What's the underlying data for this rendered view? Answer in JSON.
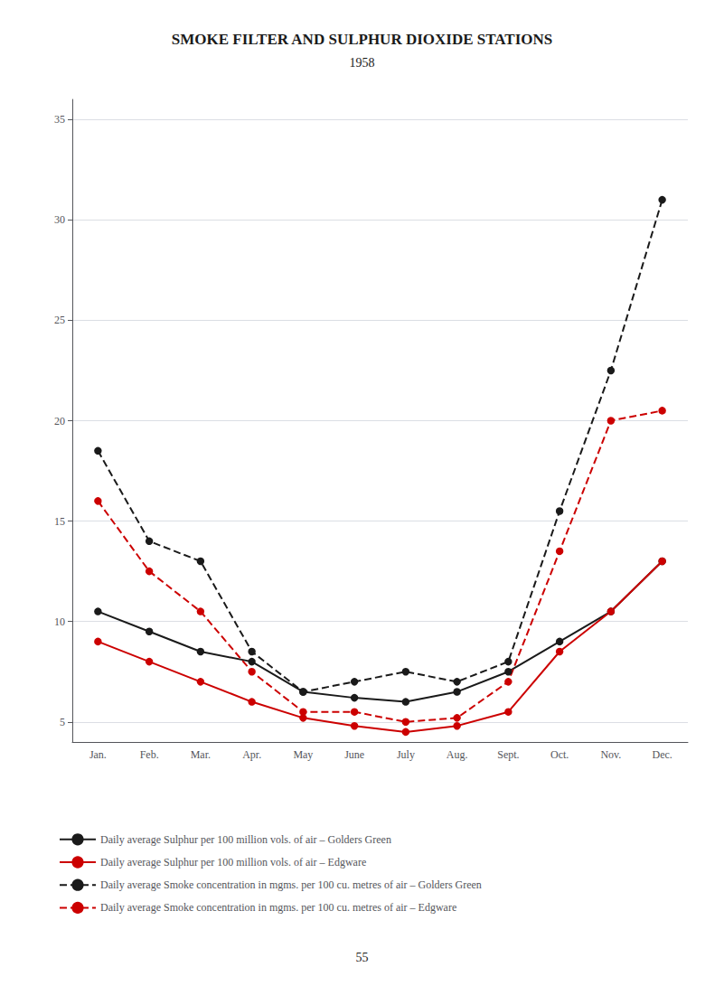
{
  "chart_data": {
    "type": "line",
    "title": "SMOKE FILTER AND SULPHUR DIOXIDE STATIONS",
    "subtitle": "1958",
    "annotations": [
      "55"
    ],
    "categories": [
      "Jan.",
      "Feb.",
      "Mar.",
      "Apr.",
      "May",
      "June",
      "July",
      "Aug.",
      "Sept.",
      "Oct.",
      "Nov.",
      "Dec."
    ],
    "series": [
      {
        "name": "Daily average Sulphur per 100 million vols. of air – Golders Green",
        "color": "#1a1a1a",
        "line_style": "solid",
        "marker": "circle",
        "values": [
          10.5,
          9.5,
          8.5,
          8.0,
          6.5,
          6.2,
          6.0,
          6.5,
          7.5,
          9.0,
          10.5,
          13.0
        ]
      },
      {
        "name": "Daily average Sulphur per 100 million vols. of air – Edgware",
        "color": "#cc0000",
        "line_style": "solid",
        "marker": "circle",
        "values": [
          9.0,
          8.0,
          7.0,
          6.0,
          5.2,
          4.8,
          4.5,
          4.8,
          5.5,
          8.5,
          10.5,
          13.0
        ]
      },
      {
        "name": "Daily average Smoke concentration in mgms. per 100 cu. metres of air – Golders Green",
        "color": "#1a1a1a",
        "line_style": "dashed",
        "marker": "circle",
        "values": [
          18.5,
          14.0,
          13.0,
          8.5,
          6.5,
          7.0,
          7.5,
          7.0,
          8.0,
          15.5,
          22.5,
          31.0
        ]
      },
      {
        "name": "Daily average Smoke concentration in mgms. per 100 cu. metres of air – Edgware",
        "color": "#cc0000",
        "line_style": "dashed",
        "marker": "circle",
        "values": [
          16.0,
          12.5,
          10.5,
          7.5,
          5.5,
          5.5,
          5.0,
          5.2,
          7.0,
          13.5,
          20.0,
          20.5
        ]
      }
    ],
    "ylim": [
      4,
      36
    ],
    "yticks": [
      5,
      10,
      15,
      20,
      25,
      30,
      35
    ],
    "grid": true,
    "legend": "bottom"
  }
}
